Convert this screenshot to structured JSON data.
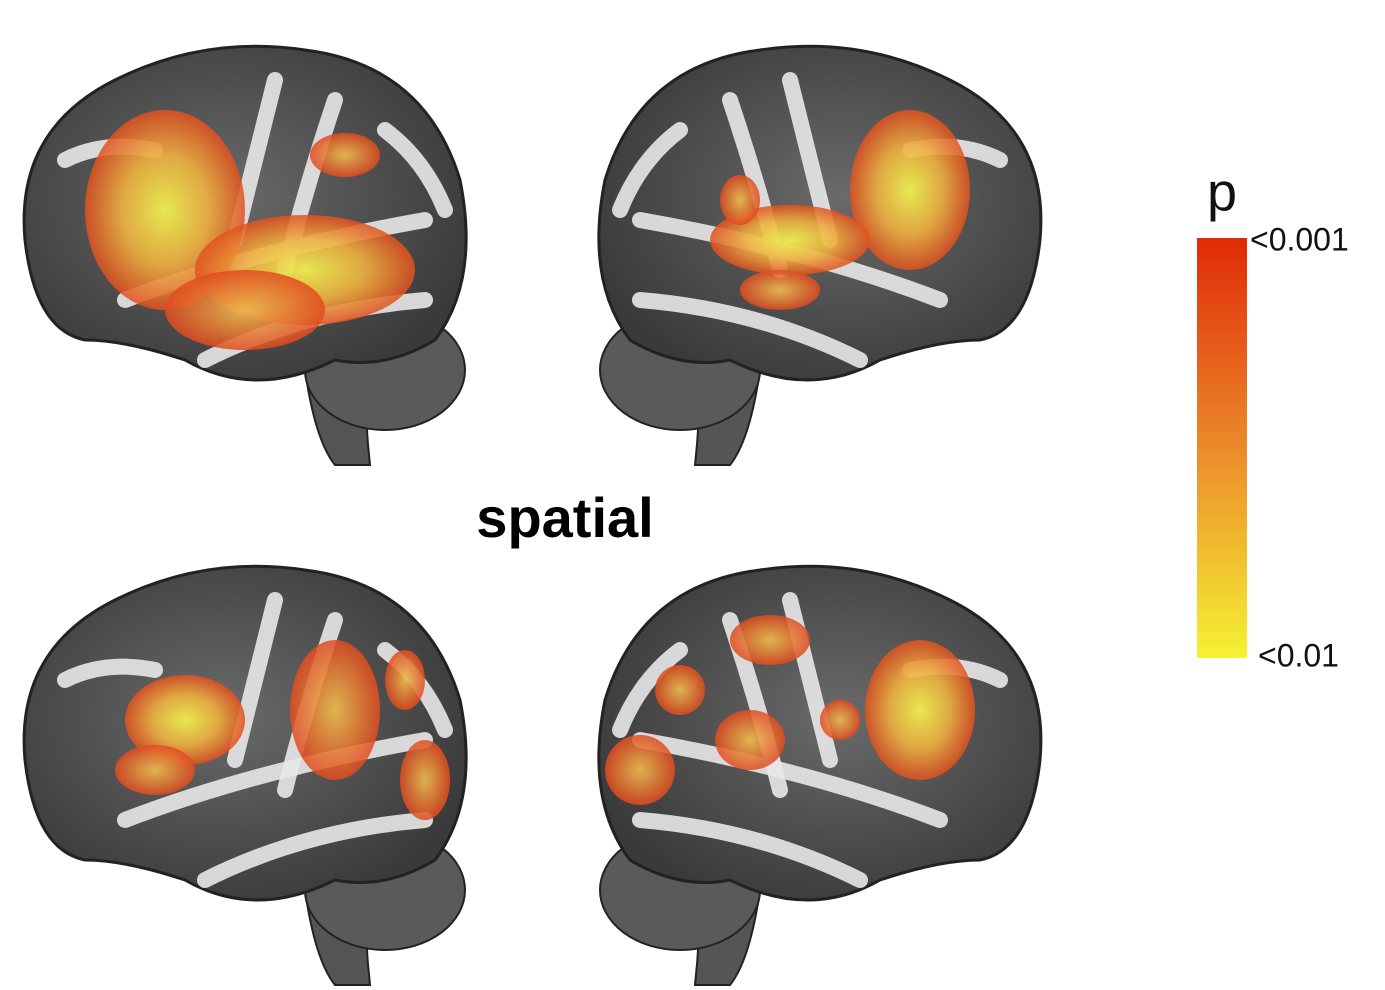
{
  "title": "spatial",
  "colorbar": {
    "label": "p",
    "top_label": "<0.001",
    "bottom_label": "<0.01"
  }
}
